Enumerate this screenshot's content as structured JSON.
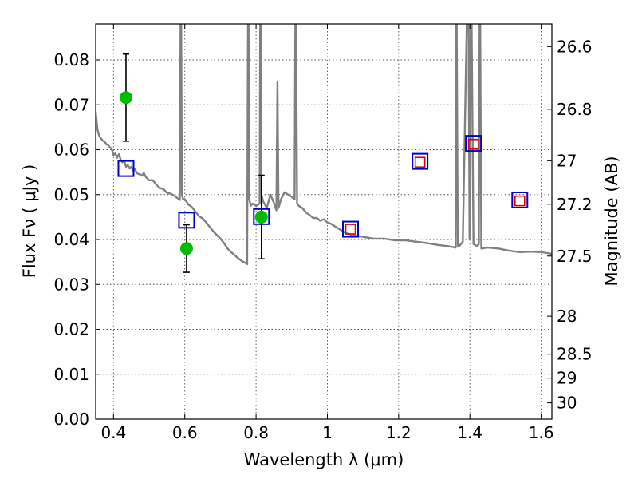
{
  "chart_data": {
    "type": "scatter",
    "xlabel": "Wavelength  λ (μm)",
    "ylabel": "Flux  Fν  ( μJy )",
    "ylabel_right": "Magnitude (AB)",
    "xlim": [
      0.35,
      1.63
    ],
    "ylim": [
      0.0,
      0.088
    ],
    "grid": true,
    "x_ticks": [
      0.4,
      0.6,
      0.8,
      1.0,
      1.2,
      1.4,
      1.6
    ],
    "x_tick_labels": [
      "0.4",
      "0.6",
      "0.8",
      "1",
      "1.2",
      "1.4",
      "1.6"
    ],
    "y_ticks": [
      0.0,
      0.01,
      0.02,
      0.03,
      0.04,
      0.05,
      0.06,
      0.07,
      0.08
    ],
    "y_tick_labels": [
      "0.00",
      "0.01",
      "0.02",
      "0.03",
      "0.04",
      "0.05",
      "0.06",
      "0.07",
      "0.08"
    ],
    "right_ticks": [
      {
        "flux": 0.08297,
        "label": "26.6"
      },
      {
        "flux": 0.06901,
        "label": "26.8"
      },
      {
        "flux": 0.05754,
        "label": "27"
      },
      {
        "flux": 0.04786,
        "label": "27.2"
      },
      {
        "flux": 0.03631,
        "label": "27.5"
      },
      {
        "flux": 0.02291,
        "label": "28"
      },
      {
        "flux": 0.01445,
        "label": "28.5"
      },
      {
        "flux": 0.00912,
        "label": "29"
      },
      {
        "flux": 0.00363,
        "label": "30"
      }
    ],
    "series": [
      {
        "kind": "line",
        "color": "#808080",
        "x": [
          0.35,
          0.355,
          0.36,
          0.365,
          0.37,
          0.375,
          0.38,
          0.385,
          0.39,
          0.395,
          0.4,
          0.405,
          0.41,
          0.415,
          0.42,
          0.425,
          0.43,
          0.435,
          0.44,
          0.445,
          0.45,
          0.455,
          0.46,
          0.465,
          0.47,
          0.475,
          0.48,
          0.485,
          0.49,
          0.5,
          0.51,
          0.52,
          0.53,
          0.54,
          0.55,
          0.56,
          0.57,
          0.58,
          0.586,
          0.589,
          0.592,
          0.595,
          0.6,
          0.61,
          0.62,
          0.63,
          0.64,
          0.65,
          0.66,
          0.67,
          0.68,
          0.69,
          0.7,
          0.71,
          0.72,
          0.73,
          0.74,
          0.75,
          0.76,
          0.77,
          0.775,
          0.778,
          0.781,
          0.785,
          0.79,
          0.8,
          0.81,
          0.812,
          0.815,
          0.82,
          0.83,
          0.84,
          0.85,
          0.857,
          0.86,
          0.863,
          0.87,
          0.88,
          0.89,
          0.9,
          0.908,
          0.911,
          0.915,
          0.92,
          0.93,
          0.94,
          0.95,
          0.96,
          0.97,
          0.98,
          0.99,
          1.0,
          1.01,
          1.02,
          1.03,
          1.04,
          1.05,
          1.07,
          1.1,
          1.13,
          1.16,
          1.19,
          1.22,
          1.25,
          1.28,
          1.31,
          1.34,
          1.36,
          1.362,
          1.366,
          1.37,
          1.375,
          1.38,
          1.395,
          1.399,
          1.403,
          1.41,
          1.42,
          1.425,
          1.428,
          1.432,
          1.45,
          1.48,
          1.51,
          1.54,
          1.57,
          1.6,
          1.63
        ],
        "y": [
          0.0685,
          0.0645,
          0.063,
          0.0625,
          0.062,
          0.0618,
          0.0612,
          0.061,
          0.0605,
          0.0602,
          0.0588,
          0.0592,
          0.0582,
          0.059,
          0.0578,
          0.0572,
          0.0575,
          0.0562,
          0.0566,
          0.0558,
          0.0562,
          0.0552,
          0.0557,
          0.0548,
          0.0546,
          0.0545,
          0.0542,
          0.0548,
          0.054,
          0.0532,
          0.0532,
          0.0522,
          0.0515,
          0.0512,
          0.0504,
          0.0502,
          0.0498,
          0.0492,
          0.0488,
          0.105,
          0.05,
          0.049,
          0.049,
          0.0478,
          0.0472,
          0.0462,
          0.0452,
          0.0447,
          0.0438,
          0.0428,
          0.0418,
          0.041,
          0.0402,
          0.0392,
          0.038,
          0.0372,
          0.0365,
          0.0358,
          0.0352,
          0.0348,
          0.0345,
          0.105,
          0.049,
          0.0475,
          0.048,
          0.0475,
          0.048,
          0.105,
          0.05,
          0.0485,
          0.047,
          0.05,
          0.0482,
          0.0465,
          0.075,
          0.047,
          0.049,
          0.0505,
          0.05,
          0.0495,
          0.049,
          0.105,
          0.048,
          0.0475,
          0.047,
          0.046,
          0.0455,
          0.0448,
          0.0448,
          0.0442,
          0.0445,
          0.0438,
          0.0435,
          0.043,
          0.0425,
          0.042,
          0.0415,
          0.041,
          0.0406,
          0.0402,
          0.0402,
          0.0398,
          0.0398,
          0.0395,
          0.0392,
          0.0388,
          0.0385,
          0.0382,
          0.105,
          0.0385,
          0.0385,
          0.039,
          0.0395,
          0.105,
          0.04,
          0.105,
          0.039,
          0.0385,
          0.039,
          0.105,
          0.038,
          0.0382,
          0.038,
          0.0375,
          0.0372,
          0.0373,
          0.0372,
          0.0368
        ]
      },
      {
        "kind": "errorbar",
        "color": "#00bb00",
        "marker": "circle",
        "x": [
          0.435,
          0.605,
          0.815
        ],
        "y": [
          0.0716,
          0.038,
          0.045
        ],
        "yerr_low": [
          0.0097,
          0.0053,
          0.0093
        ],
        "yerr_high": [
          0.0097,
          0.0053,
          0.0093
        ]
      },
      {
        "kind": "scatter",
        "color": "#0000cc",
        "marker": "open-square",
        "x": [
          0.435,
          0.605,
          0.815,
          1.065,
          1.26,
          1.41,
          1.54
        ],
        "y": [
          0.0558,
          0.0443,
          0.0451,
          0.0423,
          0.0574,
          0.0614,
          0.0488
        ]
      },
      {
        "kind": "scatter",
        "color": "#dd0000",
        "marker": "open-square-small",
        "x": [
          1.065,
          1.26,
          1.41,
          1.54
        ],
        "y": [
          0.0423,
          0.0572,
          0.0612,
          0.0486
        ]
      }
    ]
  }
}
